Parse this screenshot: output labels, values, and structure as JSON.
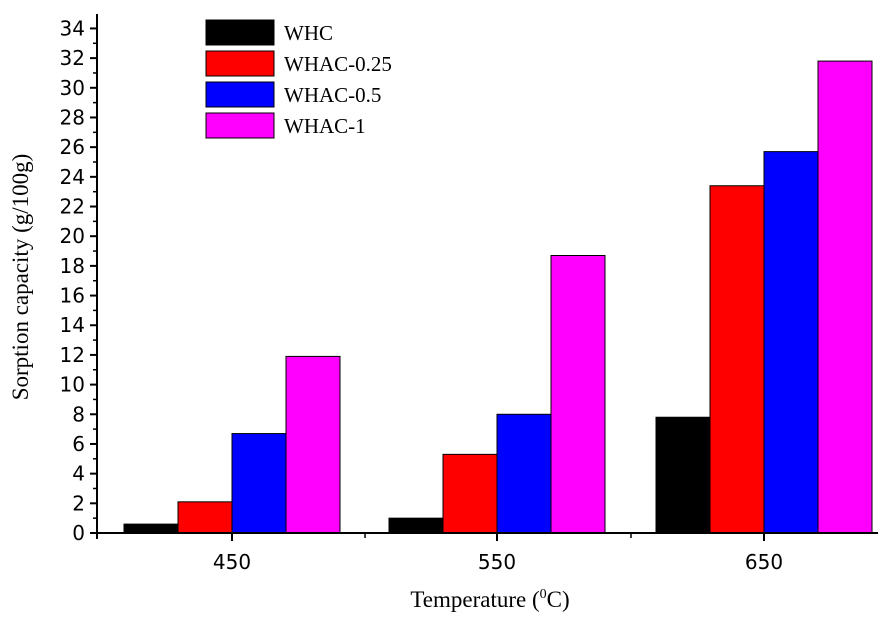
{
  "chart_data": {
    "type": "bar",
    "title": "",
    "xlabel_main": "Temperature (",
    "xlabel_sup": "0",
    "xlabel_tail": "C)",
    "ylabel": "Sorption capacity  (g/100g)",
    "categories": [
      "450",
      "550",
      "650"
    ],
    "ylim": [
      0,
      35
    ],
    "yticks": [
      0,
      2,
      4,
      6,
      8,
      10,
      12,
      14,
      16,
      18,
      20,
      22,
      24,
      26,
      28,
      30,
      32,
      34
    ],
    "grid": false,
    "legend_position": "top-left",
    "series": [
      {
        "name": "WHC",
        "color": "#000000",
        "values": [
          0.6,
          1.0,
          7.8
        ]
      },
      {
        "name": "WHAC-0.25",
        "color": "#ff0000",
        "values": [
          2.1,
          5.3,
          23.4
        ]
      },
      {
        "name": "WHAC-0.5",
        "color": "#0000ff",
        "values": [
          6.7,
          8.0,
          25.7
        ]
      },
      {
        "name": "WHAC-1",
        "color": "#ff00ff",
        "values": [
          11.9,
          18.7,
          31.8
        ]
      }
    ]
  }
}
